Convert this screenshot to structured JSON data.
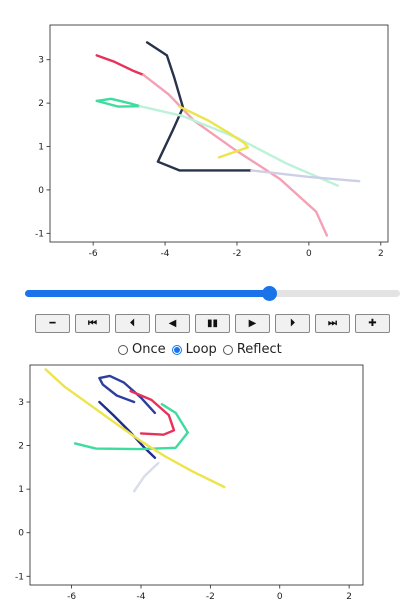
{
  "chart_data": [
    {
      "type": "line",
      "title": "",
      "xlabel": "",
      "ylabel": "",
      "xlim": [
        -7.2,
        2.2
      ],
      "ylim": [
        -1.2,
        3.8
      ],
      "xticks": [
        "-6",
        "-4",
        "-2",
        "0",
        "2"
      ],
      "yticks": [
        "-1",
        "0",
        "1",
        "2",
        "3"
      ],
      "grid": false,
      "series": [
        {
          "color": "#e8315a",
          "x": [
            -5.9,
            -5.4,
            -4.9,
            -4.6
          ],
          "y": [
            3.1,
            2.95,
            2.75,
            2.65
          ]
        },
        {
          "color": "#f5a0b4",
          "x": [
            -4.6,
            -3.9,
            -3.2,
            -2.1,
            -0.8,
            0.2,
            0.5
          ],
          "y": [
            2.65,
            2.2,
            1.6,
            0.95,
            0.25,
            -0.5,
            -1.05
          ]
        },
        {
          "color": "#28324a",
          "x": [
            -4.5,
            -3.95,
            -3.75,
            -3.5,
            -3.8,
            -4.2,
            -3.6,
            -2.6,
            -1.6
          ],
          "y": [
            3.4,
            3.1,
            2.6,
            1.9,
            1.35,
            0.65,
            0.45,
            0.45,
            0.45
          ]
        },
        {
          "color": "#3ddc9f",
          "x": [
            -5.9,
            -5.5,
            -5.0,
            -4.7,
            -5.3,
            -5.9
          ],
          "y": [
            2.05,
            2.1,
            2.0,
            1.93,
            1.92,
            2.05
          ]
        },
        {
          "color": "#bdf2d8",
          "x": [
            -4.7,
            -3.5,
            -2.0,
            -0.6,
            0.8
          ],
          "y": [
            1.93,
            1.7,
            1.2,
            0.6,
            0.1
          ]
        },
        {
          "color": "#ede44a",
          "x": [
            -3.6,
            -2.8,
            -2.2,
            -1.8,
            -1.7,
            -2.5
          ],
          "y": [
            1.92,
            1.6,
            1.3,
            1.08,
            0.98,
            0.75
          ]
        },
        {
          "color": "#ccd0e6",
          "x": [
            -1.6,
            0.0,
            1.4
          ],
          "y": [
            0.45,
            0.3,
            0.2
          ]
        }
      ]
    },
    {
      "type": "line",
      "title": "",
      "xlabel": "",
      "ylabel": "",
      "xlim": [
        -7.2,
        2.4
      ],
      "ylim": [
        -1.2,
        3.85
      ],
      "xticks": [
        "-6",
        "-4",
        "-2",
        "0",
        "2"
      ],
      "yticks": [
        "-1",
        "0",
        "1",
        "2",
        "3"
      ],
      "grid": false,
      "series": [
        {
          "color": "#2c3e9e",
          "x": [
            -4.2,
            -4.7,
            -5.1,
            -5.2,
            -4.9,
            -4.5,
            -4.0,
            -3.6
          ],
          "y": [
            3.0,
            3.15,
            3.4,
            3.55,
            3.6,
            3.45,
            3.1,
            2.75
          ]
        },
        {
          "color": "#1f2e8c",
          "x": [
            -5.2,
            -4.8,
            -4.3,
            -3.9,
            -3.6
          ],
          "y": [
            3.0,
            2.7,
            2.3,
            1.95,
            1.72
          ]
        },
        {
          "color": "#e8315a",
          "x": [
            -4.3,
            -3.7,
            -3.2,
            -3.05,
            -3.35,
            -4.0
          ],
          "y": [
            3.25,
            3.05,
            2.7,
            2.35,
            2.25,
            2.28
          ]
        },
        {
          "color": "#3ddc9f",
          "x": [
            -3.4,
            -3.0,
            -2.65,
            -3.0,
            -4.0,
            -5.3,
            -5.9
          ],
          "y": [
            2.95,
            2.75,
            2.3,
            1.95,
            1.92,
            1.93,
            2.05
          ]
        },
        {
          "color": "#ede44a",
          "x": [
            -6.75,
            -6.2,
            -5.5,
            -4.8,
            -4.0,
            -3.3,
            -2.5,
            -1.6
          ],
          "y": [
            3.75,
            3.35,
            2.95,
            2.55,
            2.1,
            1.75,
            1.4,
            1.05
          ]
        },
        {
          "color": "#d9dcec",
          "x": [
            -4.2,
            -3.9,
            -3.5
          ],
          "y": [
            0.95,
            1.3,
            1.6
          ]
        }
      ]
    }
  ],
  "slider": {
    "value": 0.65
  },
  "controls": {
    "buttons": [
      {
        "name": "decrease-speed-button",
        "glyph": "━"
      },
      {
        "name": "first-frame-button",
        "glyph": "⏮"
      },
      {
        "name": "previous-frame-button",
        "glyph": "⏴"
      },
      {
        "name": "play-reverse-button",
        "glyph": "◀"
      },
      {
        "name": "pause-button",
        "glyph": "▮▮"
      },
      {
        "name": "play-button",
        "glyph": "▶"
      },
      {
        "name": "next-frame-button",
        "glyph": "⏵"
      },
      {
        "name": "last-frame-button",
        "glyph": "⏭"
      },
      {
        "name": "increase-speed-button",
        "glyph": "✚"
      }
    ]
  },
  "modes": {
    "options": [
      {
        "label": "Once",
        "checked": false
      },
      {
        "label": "Loop",
        "checked": true
      },
      {
        "label": "Reflect",
        "checked": false
      }
    ]
  }
}
